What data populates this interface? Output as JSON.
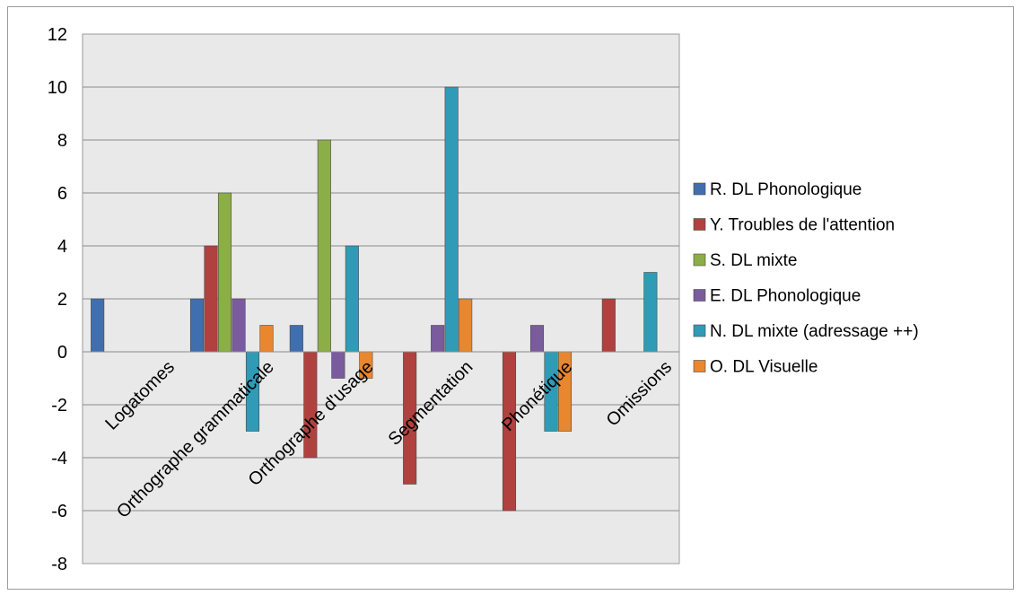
{
  "chart_data": {
    "type": "bar",
    "categories": [
      "Logatomes",
      "Orthographe grammaticale",
      "Orthographe d'usage",
      "Segmentation",
      "Phonétique",
      "Omissions"
    ],
    "series": [
      {
        "name": "R. DL Phonologique",
        "color": "#3f6faf",
        "values": [
          2,
          2,
          1,
          0,
          0,
          0
        ]
      },
      {
        "name": "Y. Troubles de l'attention",
        "color": "#b0413e",
        "values": [
          0,
          4,
          -4,
          -5,
          -6,
          2
        ]
      },
      {
        "name": "S. DL mixte",
        "color": "#8cae46",
        "values": [
          0,
          6,
          8,
          0,
          0,
          0
        ]
      },
      {
        "name": "E. DL Phonologique",
        "color": "#7a5b9e",
        "values": [
          0,
          2,
          -1,
          1,
          1,
          0
        ]
      },
      {
        "name": "N.  DL mixte (adressage ++)",
        "color": "#2f9bb6",
        "values": [
          0,
          -3,
          4,
          10,
          -3,
          3
        ]
      },
      {
        "name": "O. DL Visuelle",
        "color": "#e8872f",
        "values": [
          0,
          1,
          -1,
          2,
          -3,
          0
        ]
      }
    ],
    "ylim": [
      -8,
      12
    ],
    "yticks": [
      "12",
      "10",
      "8",
      "6",
      "4",
      "2",
      "0",
      "-2",
      "-4",
      "-6",
      "-8"
    ],
    "grid": true,
    "legend_position": "right"
  }
}
